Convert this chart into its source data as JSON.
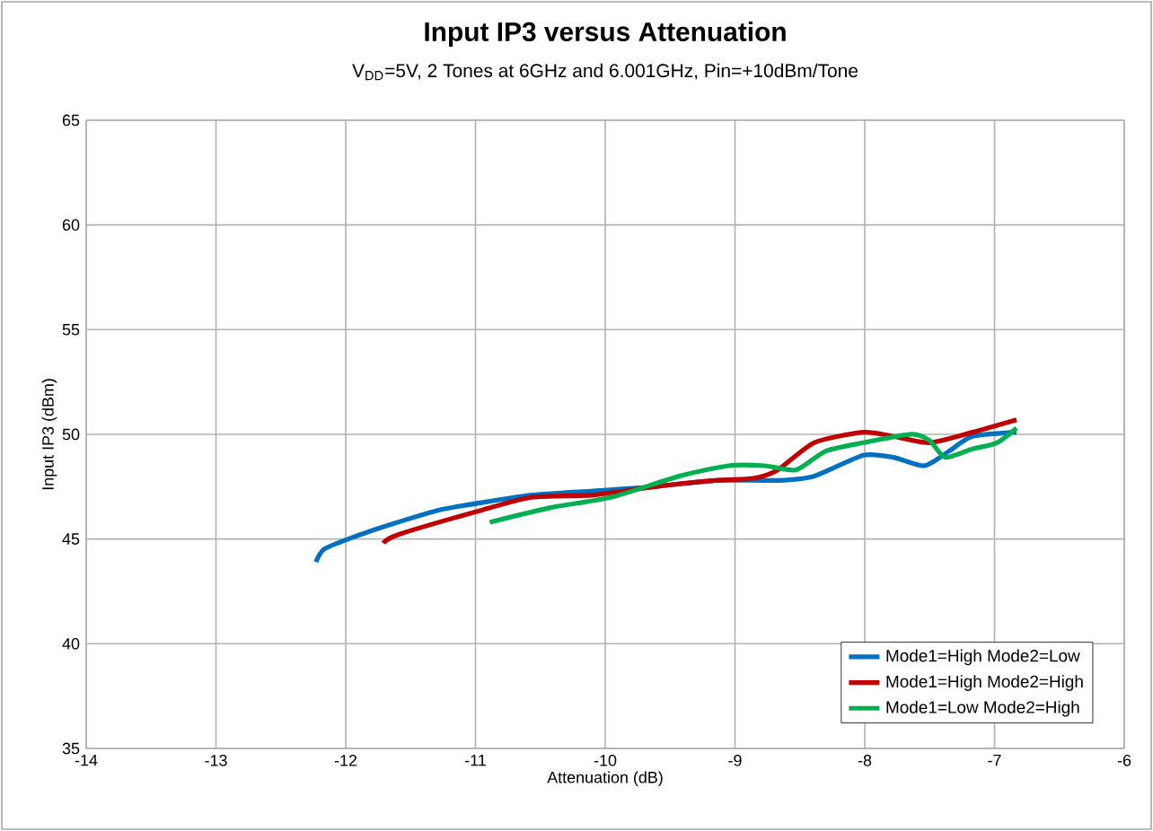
{
  "chart_data": {
    "type": "line",
    "title": "Input IP3 versus Attenuation",
    "subtitle": "V$_{DD}$=5V, 2 Tones at 6GHz and 6.001GHz, Pin=+10dBm/Tone",
    "xlabel": "Attenuation (dB)",
    "ylabel": "Input IP3 (dBm)",
    "xlim": [
      -14,
      -6
    ],
    "xticks": [
      -14,
      -13,
      -12,
      -11,
      -10,
      -9,
      -8,
      -7,
      -6
    ],
    "ylim": [
      35,
      65
    ],
    "yticks": [
      35,
      40,
      45,
      50,
      55,
      60,
      65
    ],
    "grid": true,
    "legend": "bottom right",
    "marker": "none",
    "line_style": "solid",
    "series": [
      {
        "name": "Mode1=High Mode2=Low",
        "color": "#0070c0",
        "x": [
          -12.23,
          -12.17,
          -11.98,
          -11.65,
          -11.27,
          -10.89,
          -10.56,
          -10.09,
          -9.62,
          -9.15,
          -8.67,
          -8.39,
          -8.01,
          -7.78,
          -7.54,
          -7.35,
          -7.17,
          -6.83
        ],
        "values": [
          43.9,
          44.5,
          45.0,
          45.7,
          46.4,
          46.8,
          47.1,
          47.3,
          47.5,
          47.8,
          47.8,
          48.0,
          49.0,
          48.9,
          48.5,
          49.2,
          49.9,
          50.1
        ]
      },
      {
        "name": "Mode1=High Mode2=High",
        "color": "#c00000",
        "x": [
          -11.71,
          -11.6,
          -10.94,
          -10.56,
          -10.09,
          -9.62,
          -9.15,
          -8.86,
          -8.67,
          -8.39,
          -8.01,
          -7.78,
          -7.5,
          -7.17,
          -6.83
        ],
        "values": [
          44.8,
          45.2,
          46.4,
          47.0,
          47.1,
          47.5,
          47.8,
          47.9,
          48.3,
          49.6,
          50.1,
          49.9,
          49.6,
          50.1,
          50.7
        ]
      },
      {
        "name": "Mode1=Low Mode2=High",
        "color": "#00b050",
        "x": [
          -10.89,
          -10.42,
          -9.95,
          -9.43,
          -9.05,
          -8.77,
          -8.53,
          -8.3,
          -8.01,
          -7.64,
          -7.5,
          -7.38,
          -7.17,
          -6.98,
          -6.83
        ],
        "values": [
          45.8,
          46.5,
          47.0,
          48.0,
          48.5,
          48.5,
          48.3,
          49.2,
          49.6,
          50.0,
          49.7,
          48.9,
          49.3,
          49.6,
          50.3
        ]
      }
    ]
  }
}
